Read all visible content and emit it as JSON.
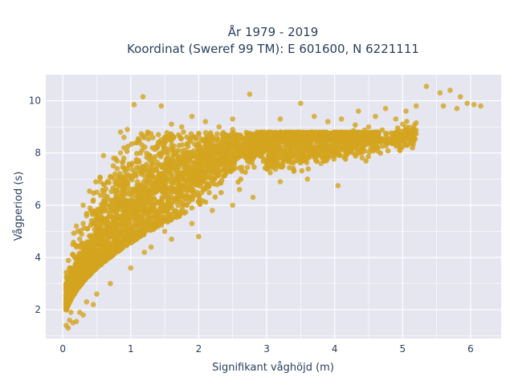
{
  "chart_data": {
    "type": "scatter",
    "title_line1": "År 1979 - 2019",
    "title_line2": "Koordinat (Sweref 99 TM): E 601600, N 6221111",
    "xlabel": "Signifikant våghöjd (m)",
    "ylabel": "Vågperiod (s)",
    "xlim": [
      -0.25,
      6.45
    ],
    "ylim": [
      0.9,
      11.0
    ],
    "xticks": [
      0,
      1,
      2,
      3,
      4,
      5,
      6
    ],
    "yticks": [
      2,
      4,
      6,
      8,
      10
    ],
    "grid": true,
    "marker_color": "#D4A420",
    "plot_bgcolor": "#E5E6F0",
    "series": [
      {
        "points": [
          [
            0.05,
            1.4
          ],
          [
            0.08,
            1.3
          ],
          [
            0.1,
            1.6
          ],
          [
            0.12,
            1.9
          ],
          [
            0.1,
            2.3
          ],
          [
            0.08,
            2.8
          ],
          [
            0.12,
            3.2
          ],
          [
            0.15,
            3.6
          ],
          [
            0.18,
            4.0
          ],
          [
            0.2,
            4.4
          ],
          [
            0.25,
            4.7
          ],
          [
            0.22,
            5.0
          ],
          [
            0.3,
            5.3
          ],
          [
            0.35,
            5.6
          ],
          [
            0.4,
            5.9
          ],
          [
            0.45,
            6.2
          ],
          [
            0.5,
            6.5
          ],
          [
            0.6,
            6.8
          ],
          [
            0.7,
            7.1
          ],
          [
            0.8,
            7.4
          ],
          [
            0.75,
            7.8
          ],
          [
            0.85,
            8.0
          ],
          [
            0.9,
            8.2
          ],
          [
            0.85,
            8.8
          ],
          [
            0.95,
            8.9
          ],
          [
            1.05,
            9.85
          ],
          [
            1.18,
            10.15
          ],
          [
            1.25,
            8.8
          ],
          [
            1.45,
            9.8
          ],
          [
            1.6,
            9.1
          ],
          [
            1.75,
            9.0
          ],
          [
            1.9,
            9.4
          ],
          [
            2.1,
            9.2
          ],
          [
            2.3,
            9.0
          ],
          [
            2.5,
            9.3
          ],
          [
            2.75,
            10.25
          ],
          [
            3.2,
            9.3
          ],
          [
            3.5,
            9.9
          ],
          [
            3.7,
            9.4
          ],
          [
            3.9,
            9.2
          ],
          [
            4.1,
            9.3
          ],
          [
            4.35,
            9.6
          ],
          [
            4.6,
            9.4
          ],
          [
            4.75,
            9.7
          ],
          [
            4.9,
            9.3
          ],
          [
            5.05,
            9.6
          ],
          [
            5.2,
            9.8
          ],
          [
            5.35,
            10.55
          ],
          [
            5.55,
            10.3
          ],
          [
            5.7,
            10.4
          ],
          [
            5.85,
            10.15
          ],
          [
            5.95,
            9.9
          ],
          [
            6.05,
            9.85
          ],
          [
            6.15,
            9.8
          ],
          [
            5.8,
            9.7
          ],
          [
            5.6,
            9.8
          ],
          [
            4.05,
            6.75
          ],
          [
            3.6,
            7.0
          ],
          [
            3.2,
            6.9
          ],
          [
            2.8,
            6.3
          ],
          [
            2.5,
            6.0
          ],
          [
            2.2,
            5.8
          ],
          [
            1.9,
            5.3
          ],
          [
            1.6,
            4.7
          ],
          [
            1.3,
            4.4
          ],
          [
            1.0,
            3.6
          ],
          [
            0.7,
            3.0
          ],
          [
            0.5,
            2.6
          ],
          [
            0.35,
            2.3
          ],
          [
            0.25,
            1.9
          ],
          [
            0.15,
            1.5
          ],
          [
            2.0,
            4.8
          ],
          [
            0.6,
            7.9
          ],
          [
            0.9,
            8.6
          ],
          [
            0.55,
            6.9
          ],
          [
            0.3,
            6.0
          ],
          [
            0.2,
            5.2
          ],
          [
            0.15,
            4.5
          ],
          [
            0.1,
            3.6
          ],
          [
            1.1,
            8.4
          ],
          [
            1.5,
            8.6
          ],
          [
            2.0,
            8.7
          ],
          [
            2.5,
            8.9
          ],
          [
            3.0,
            8.6
          ],
          [
            4.5,
            9.0
          ],
          [
            5.0,
            9.1
          ],
          [
            4.8,
            8.4
          ],
          [
            4.4,
            8.1
          ],
          [
            3.8,
            7.6
          ],
          [
            3.4,
            7.3
          ],
          [
            2.6,
            6.6
          ],
          [
            1.5,
            5.0
          ],
          [
            1.2,
            4.2
          ],
          [
            0.45,
            2.2
          ],
          [
            0.3,
            1.8
          ],
          [
            0.2,
            1.55
          ]
        ]
      }
    ]
  }
}
